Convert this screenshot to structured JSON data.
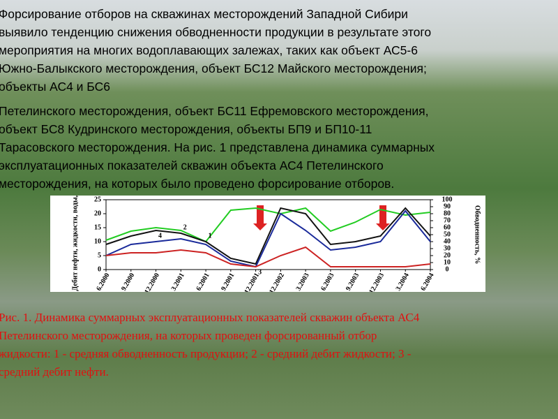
{
  "paragraphs": [
    [
      "Форсирование отборов на скважинах месторождений Западной Сибири",
      "выявило тенденцию  снижения  обводненности продукции в результате этого",
      "мероприятия на многих водоплавающих залежах, таких как объект АС5-6",
      "Южно-Балыкского месторождения, объект БС12 Майского месторождения;",
      "объекты АС4 и БС6"
    ],
    [
      "Петелинского месторождения, объект БС11 Ефремовского месторождения,",
      "объект БС8 Кудринского месторождения, объекты БП9 и БП10-11",
      "Тарасовского месторождения. На рис. 1 представлена динамика суммарных",
      "эксплуатационных  показателей скважин объекта АС4 Петелинского",
      "месторождения,  на которых было проведено форсирование отборов."
    ]
  ],
  "caption": [
    "Рис. 1. Динамика суммарных эксплуатационных показателей скважин объекта АС4",
    "Петелинского месторождения, на которых проведен форсированный отбор",
    "жидкости: 1 - средняя обводненность продукции; 2 - средний дебит жидкости; 3 -",
    "средний дебит нефти."
  ],
  "chart_data": {
    "type": "line",
    "y_label": "Дебит нефти, жидкости, воды, т/сут",
    "y2_label": "Обводненность, %",
    "categories": [
      "6.2000",
      "9.2000",
      "12.2000",
      "3.2001",
      "6.2001",
      "9.2001",
      "12.2001",
      "12.2002",
      "3.2003",
      "6.2003",
      "9.2003",
      "12.2003",
      "3.2004",
      "6.2004"
    ],
    "ylim": [
      0,
      25
    ],
    "yticks": [
      0,
      5,
      10,
      15,
      20,
      25
    ],
    "y2lim": [
      0,
      100
    ],
    "y2ticks": [
      0,
      10,
      20,
      30,
      40,
      50,
      60,
      70,
      80,
      90,
      100
    ],
    "series": [
      {
        "name": "1",
        "color": "#22cc22",
        "axis": "y2",
        "values": [
          42,
          55,
          60,
          56,
          40,
          85,
          88,
          80,
          88,
          55,
          68,
          86,
          78,
          82
        ]
      },
      {
        "name": "2",
        "color": "#111111",
        "values": [
          9,
          12,
          14,
          13,
          10,
          4,
          2,
          22,
          20,
          9,
          10,
          12,
          22,
          12
        ]
      },
      {
        "name": "4",
        "color": "#1a2a9a",
        "values": [
          5,
          9,
          10,
          11,
          9,
          3,
          1,
          20,
          14,
          7,
          8,
          10,
          21,
          10
        ]
      },
      {
        "name": "3",
        "color": "#cc2222",
        "values": [
          5,
          6,
          6,
          7,
          6,
          2,
          1,
          5,
          8,
          1,
          1,
          1,
          1,
          2
        ]
      }
    ]
  }
}
